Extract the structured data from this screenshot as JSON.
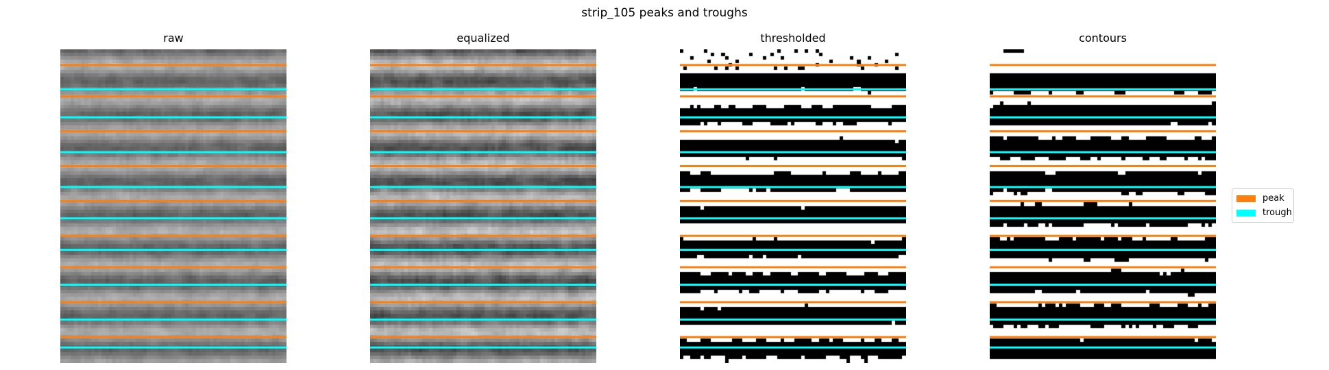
{
  "figure": {
    "title": "strip_105 peaks and troughs"
  },
  "colors": {
    "peak": "#ff7f0e",
    "trough": "#00ffff",
    "background": "#ffffff"
  },
  "legend": {
    "placement": "right",
    "items": [
      {
        "label": "peak",
        "color": "#ff7f0e"
      },
      {
        "label": "trough",
        "color": "#00ffff"
      }
    ]
  },
  "chart_data": {
    "type": "heatmap",
    "image_rows": 90,
    "image_cols": 65,
    "peak_rows": [
      4,
      13,
      23,
      33,
      43,
      53,
      62,
      72,
      82
    ],
    "trough_rows": [
      11,
      19,
      29,
      39,
      48,
      57,
      67,
      77,
      85
    ],
    "panels": [
      {
        "title": "raw",
        "mode": "gray"
      },
      {
        "title": "equalized",
        "mode": "gray-eq"
      },
      {
        "title": "thresholded",
        "mode": "binary"
      },
      {
        "title": "contours",
        "mode": "contours"
      }
    ]
  }
}
